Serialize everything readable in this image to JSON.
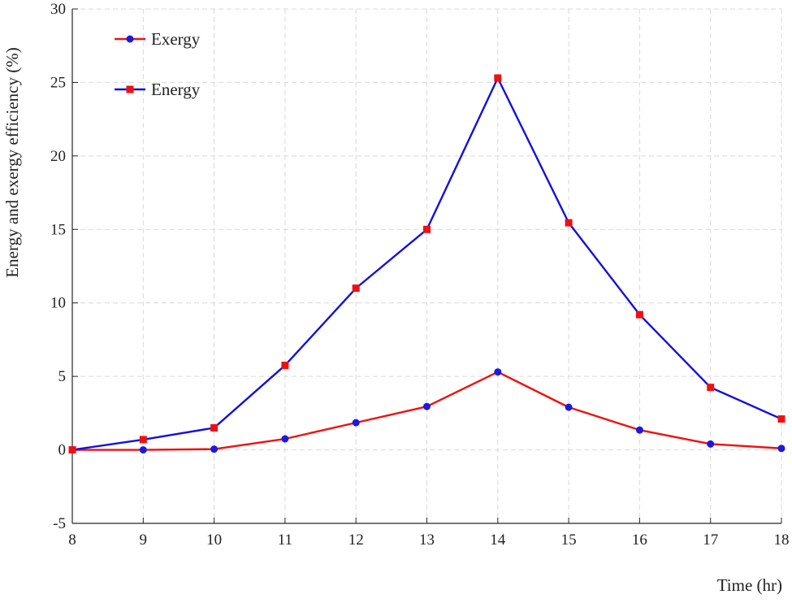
{
  "chart_data": {
    "type": "line",
    "xlabel": "Time (hr)",
    "ylabel": "Energy and exergy efficiency (%)",
    "xlim": [
      8,
      18
    ],
    "ylim": [
      -5,
      30
    ],
    "x_ticks": [
      "8",
      "9",
      "10",
      "11",
      "12",
      "13",
      "14",
      "15",
      "16",
      "17",
      "18"
    ],
    "y_ticks": [
      "-5",
      "0",
      "5",
      "10",
      "15",
      "20",
      "25",
      "30"
    ],
    "grid": true,
    "legend_position": "top-left",
    "x": [
      8,
      9,
      10,
      11,
      12,
      13,
      14,
      15,
      16,
      17,
      18
    ],
    "series": [
      {
        "name": "Exergy",
        "line_color": "#ee1111",
        "marker_color": "#1a1add",
        "marker": "circle",
        "values": [
          0.0,
          0.0,
          0.05,
          0.75,
          1.85,
          2.95,
          5.3,
          2.9,
          1.35,
          0.4,
          0.1
        ]
      },
      {
        "name": "Energy",
        "line_color": "#1111dd",
        "marker_color": "#ee1111",
        "marker": "square",
        "values": [
          0.0,
          0.7,
          1.5,
          5.75,
          11.0,
          15.0,
          25.3,
          15.45,
          9.2,
          4.25,
          2.1
        ]
      }
    ]
  }
}
